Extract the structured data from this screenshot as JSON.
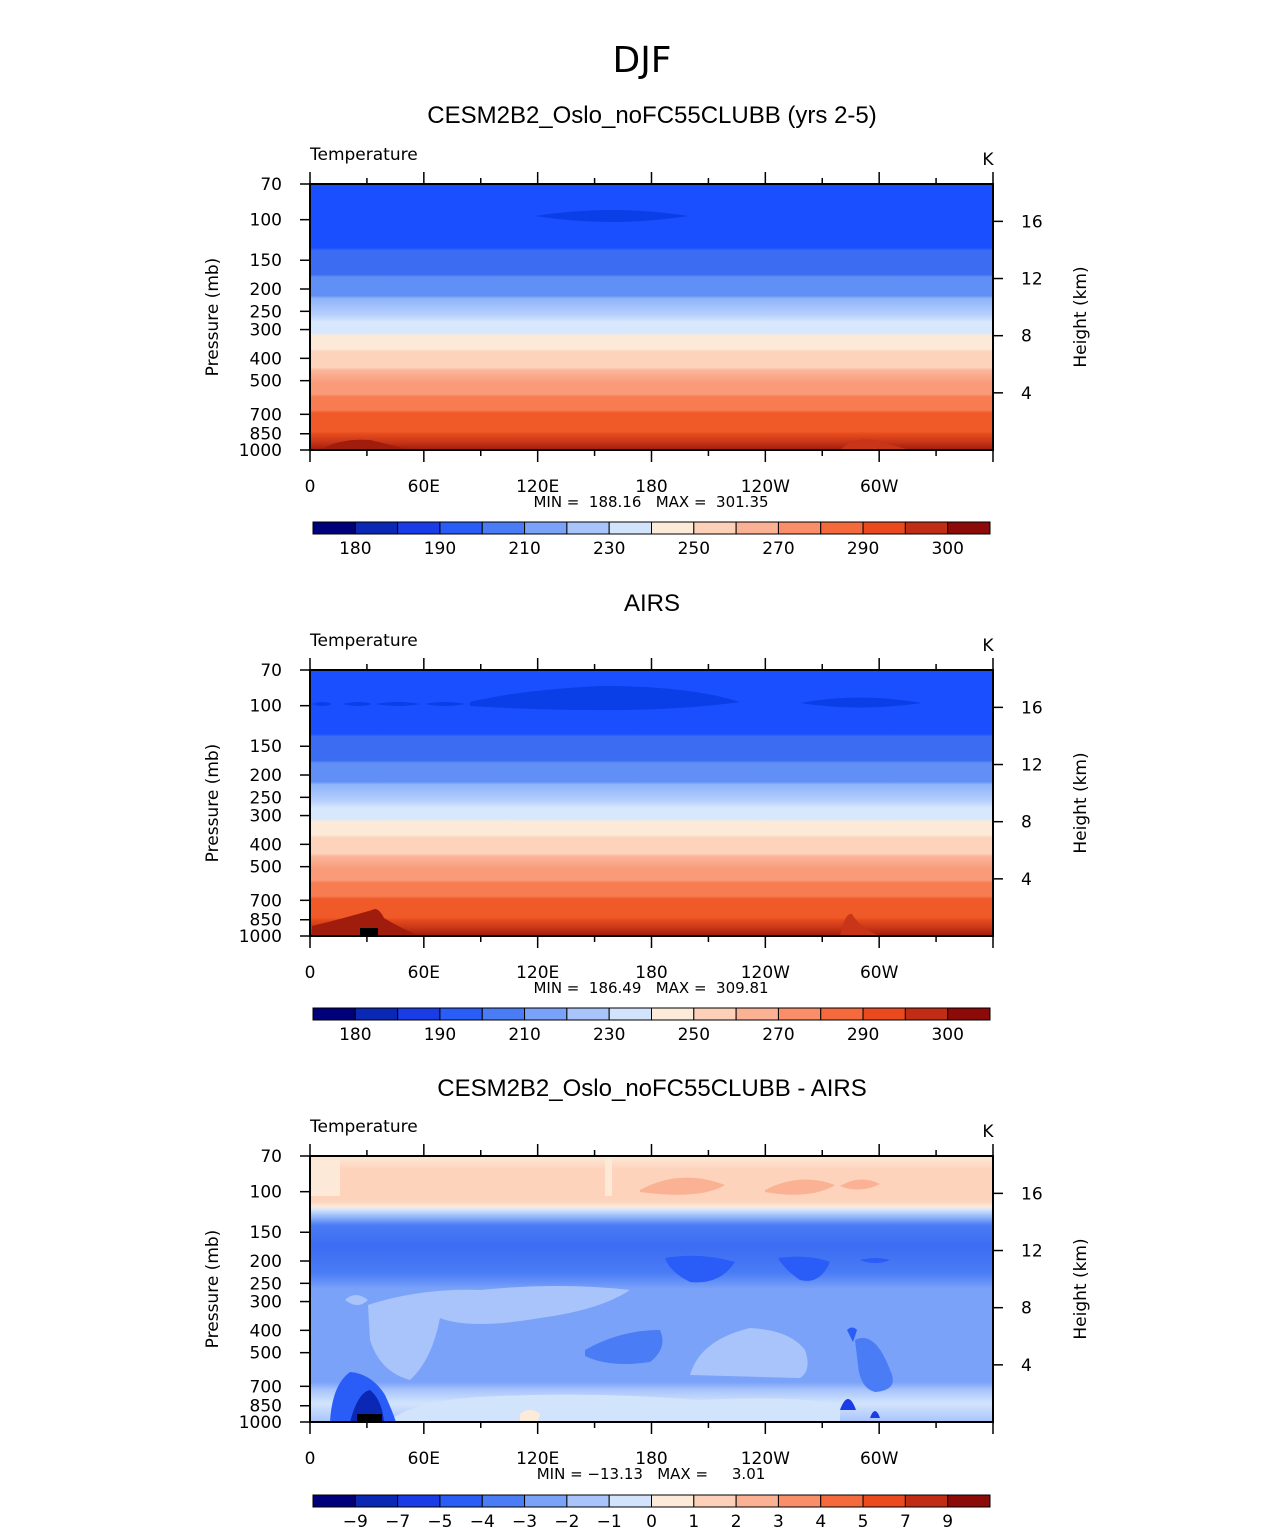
{
  "figure_title": "DJF",
  "chart_data": [
    {
      "type": "heatmap",
      "title": "CESM2B2_Oslo_noFC55CLUBB (yrs 2-5)",
      "variable_label": "Temperature",
      "units": "K",
      "ylabel": "Pressure (mb)",
      "y2label": "Height (km)",
      "x_ticks": [
        "0",
        "60E",
        "120E",
        "180",
        "120W",
        "60W"
      ],
      "y_ticks": [
        "70",
        "100",
        "150",
        "200",
        "250",
        "300",
        "400",
        "500",
        "700",
        "850",
        "1000"
      ],
      "y2_ticks": [
        "16",
        "12",
        "8",
        "4"
      ],
      "min_max_text": "MIN =  188.16   MAX =  301.35",
      "stats": {
        "min": 188.16,
        "max": 301.35
      },
      "colorbar_levels": [
        175,
        180,
        185,
        190,
        200,
        210,
        220,
        230,
        240,
        250,
        260,
        270,
        280,
        290,
        295,
        300,
        305
      ],
      "colorbar_labels": [
        "180",
        "190",
        "210",
        "230",
        "250",
        "270",
        "290",
        "300"
      ],
      "bands": [
        {
          "level": 190,
          "color": "#1a4fff"
        },
        {
          "level": 200,
          "color": "#3c6cf2"
        },
        {
          "level": 210,
          "color": "#6090f5"
        },
        {
          "level": 220,
          "color": "#8fb4fa"
        },
        {
          "level": 230,
          "color": "#b4cefc"
        },
        {
          "level": 240,
          "color": "#d8e8fc"
        },
        {
          "level": 250,
          "color": "#fde9d8"
        },
        {
          "level": 260,
          "color": "#fdd3bc"
        },
        {
          "level": 270,
          "color": "#fbb69a"
        },
        {
          "level": 280,
          "color": "#f99a78"
        },
        {
          "level": 285,
          "color": "#f77c52"
        },
        {
          "level": 290,
          "color": "#f05a28"
        },
        {
          "level": 295,
          "color": "#e54a1c"
        },
        {
          "level": 300,
          "color": "#c83518"
        },
        {
          "level": 305,
          "color": "#a01c0c"
        }
      ]
    },
    {
      "type": "heatmap",
      "title": "AIRS",
      "variable_label": "Temperature",
      "units": "K",
      "ylabel": "Pressure (mb)",
      "y2label": "Height (km)",
      "x_ticks": [
        "0",
        "60E",
        "120E",
        "180",
        "120W",
        "60W"
      ],
      "y_ticks": [
        "70",
        "100",
        "150",
        "200",
        "250",
        "300",
        "400",
        "500",
        "700",
        "850",
        "1000"
      ],
      "y2_ticks": [
        "16",
        "12",
        "8",
        "4"
      ],
      "min_max_text": "MIN =  186.49   MAX =  309.81",
      "stats": {
        "min": 186.49,
        "max": 309.81
      },
      "colorbar_levels": [
        175,
        180,
        185,
        190,
        200,
        210,
        220,
        230,
        240,
        250,
        260,
        270,
        280,
        290,
        295,
        300,
        305
      ],
      "colorbar_labels": [
        "180",
        "190",
        "210",
        "230",
        "250",
        "270",
        "290",
        "300"
      ]
    },
    {
      "type": "heatmap",
      "title": "CESM2B2_Oslo_noFC55CLUBB - AIRS",
      "variable_label": "Temperature",
      "units": "K",
      "ylabel": "Pressure (mb)",
      "y2label": "Height (km)",
      "x_ticks": [
        "0",
        "60E",
        "120E",
        "180",
        "120W",
        "60W"
      ],
      "y_ticks": [
        "70",
        "100",
        "150",
        "200",
        "250",
        "300",
        "400",
        "500",
        "700",
        "850",
        "1000"
      ],
      "y2_ticks": [
        "16",
        "12",
        "8",
        "4"
      ],
      "min_max_text": "MIN = −13.13   MAX =     3.01",
      "stats": {
        "min": -13.13,
        "max": 3.01
      },
      "colorbar_levels": [
        -11,
        -9,
        -7,
        -5,
        -4,
        -3,
        -2,
        -1,
        0,
        1,
        2,
        3,
        4,
        5,
        7,
        9,
        11
      ],
      "colorbar_labels": [
        "−9",
        "−7",
        "−5",
        "−4",
        "−3",
        "−2",
        "−1",
        "0",
        "1",
        "2",
        "3",
        "4",
        "5",
        "7",
        "9"
      ]
    }
  ],
  "colorbar_colors": [
    "#00007a",
    "#0a28b4",
    "#1a3ce6",
    "#2a5cf8",
    "#4a7cf6",
    "#7aa2f8",
    "#a8c4fb",
    "#d2e4fc",
    "#fdebd9",
    "#fdd1b9",
    "#fbb193",
    "#f98e68",
    "#f56a3c",
    "#ea4a1e",
    "#c02c14",
    "#8c0a08"
  ]
}
